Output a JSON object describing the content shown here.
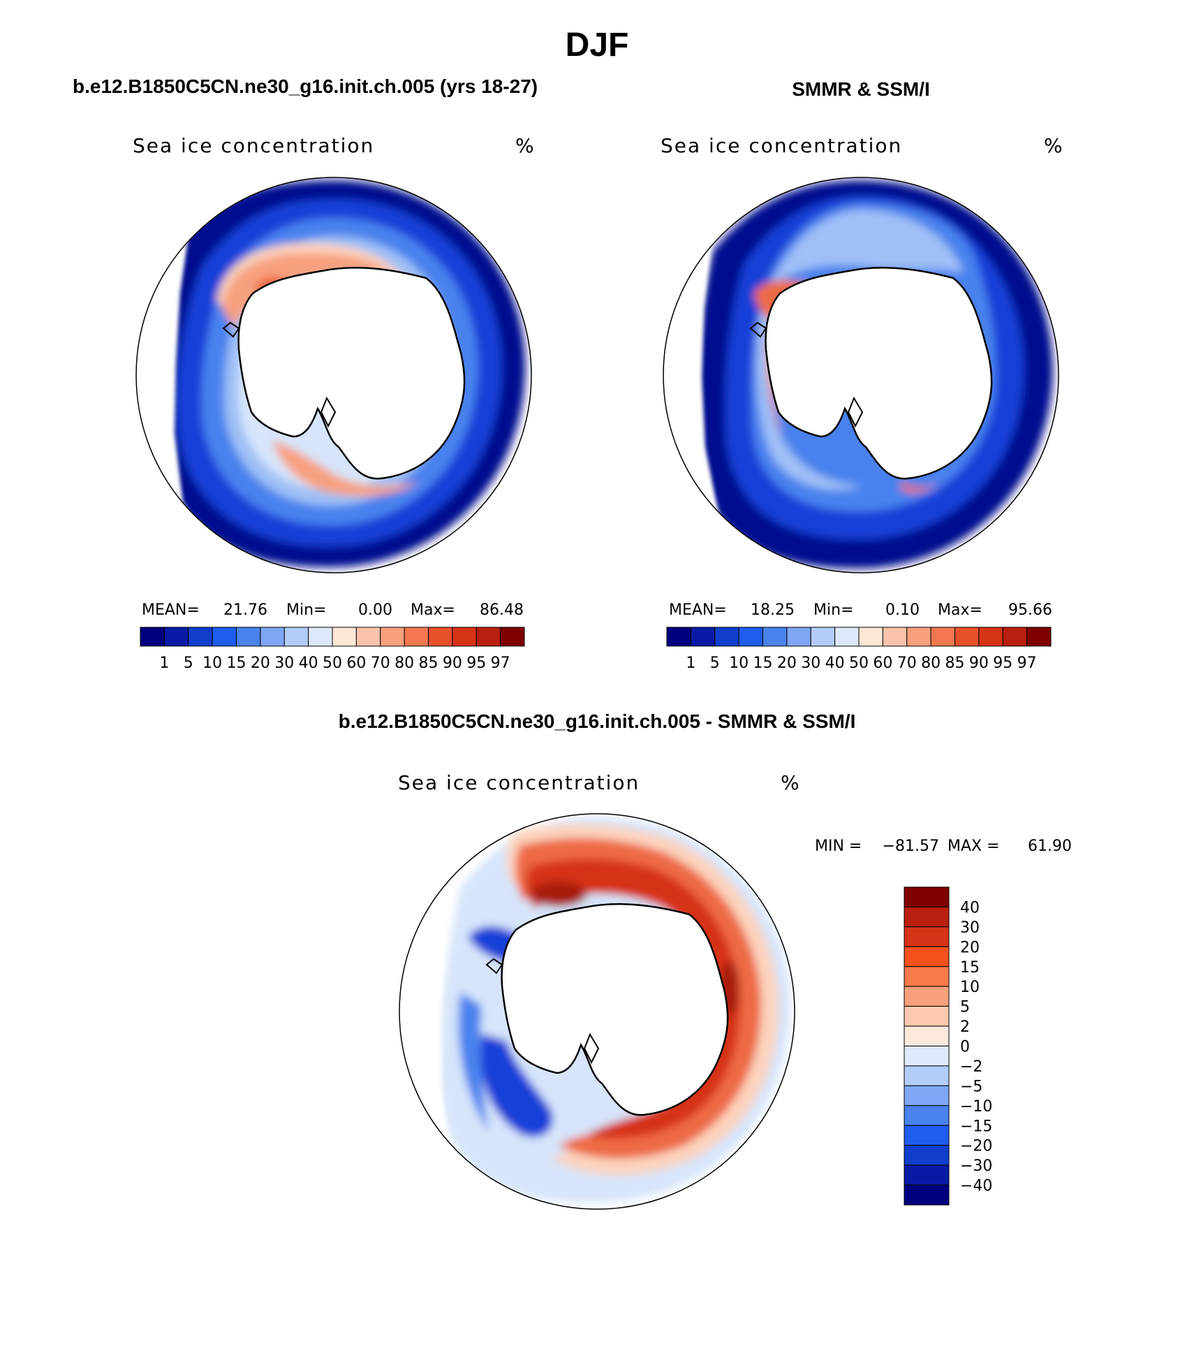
{
  "page_title": "DJF",
  "panels": [
    {
      "id": "model",
      "title": "b.e12.B1850C5CN.ne30_g16.init.ch.005 (yrs 18-27)",
      "variable": "Sea ice concentration",
      "units": "%",
      "stats": {
        "mean_label": "MEAN=",
        "mean": "21.76",
        "min_label": "Min=",
        "min": "0.00",
        "max_label": "Max=",
        "max": "86.48"
      }
    },
    {
      "id": "obs",
      "title": "SMMR & SSM/I",
      "variable": "Sea ice concentration",
      "units": "%",
      "stats": {
        "mean_label": "MEAN=",
        "mean": "18.25",
        "min_label": "Min=",
        "min": "0.10",
        "max_label": "Max=",
        "max": "95.66"
      }
    },
    {
      "id": "diff",
      "title": "b.e12.B1850C5CN.ne30_g16.init.ch.005 - SMMR & SSM/I",
      "variable": "Sea ice concentration",
      "units": "%",
      "stats": {
        "min_label": "MIN =",
        "min": "−81.57",
        "max_label": "MAX =",
        "max": "61.90"
      }
    }
  ],
  "colorbars": {
    "concentration": {
      "labels": [
        "1",
        "5",
        "10",
        "15",
        "20",
        "30",
        "40",
        "50",
        "60",
        "70",
        "80",
        "85",
        "90",
        "95",
        "97"
      ],
      "colors": [
        "#00007f",
        "#0a1aa6",
        "#0f3fcc",
        "#1f5cf0",
        "#4a82ee",
        "#7ea6f4",
        "#b2cdf8",
        "#dde9fb",
        "#fde6d6",
        "#fcc3ac",
        "#f9a07c",
        "#f4774f",
        "#e9502c",
        "#d63317",
        "#b81f0e",
        "#7f0000"
      ]
    },
    "difference": {
      "labels": [
        "40",
        "30",
        "20",
        "15",
        "10",
        "5",
        "2",
        "0",
        "−2",
        "−5",
        "−10",
        "−15",
        "−20",
        "−30",
        "−40"
      ],
      "colors": [
        "#7f0000",
        "#b81f0e",
        "#d63317",
        "#f4511e",
        "#f67a4a",
        "#f9a07c",
        "#fcc9b0",
        "#fde8dc",
        "#dde9fb",
        "#b2cdf8",
        "#7ea6f4",
        "#4a82ee",
        "#1f5cf0",
        "#0f3fcc",
        "#0a1aa6",
        "#00007f"
      ]
    }
  },
  "map_colors": {
    "deep_blue": "#00088f",
    "blue": "#1740d8",
    "mid_blue": "#4a82ee",
    "light_blue": "#9fc0f6",
    "pale_blue": "#d6e5fb",
    "pale_red": "#fcd3bd",
    "salmon": "#f7a07f",
    "orange_red": "#ee6a45",
    "red": "#d63317",
    "dark_red": "#a81a0c",
    "land": "#ffffff",
    "outline": "#000000"
  }
}
